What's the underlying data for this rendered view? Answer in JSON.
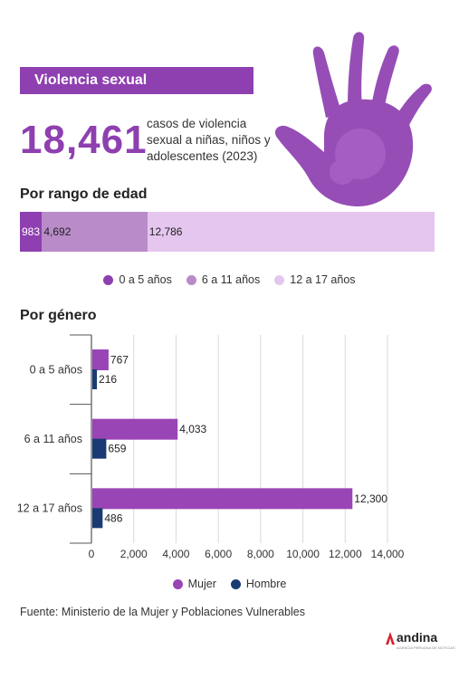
{
  "banner": {
    "title": "Violencia sexual"
  },
  "headline": {
    "number": "18,461",
    "description": "casos de violencia sexual a niñas, niños y adolescentes (2023)"
  },
  "age_section": {
    "title": "Por rango de edad"
  },
  "gender_section": {
    "title": "Por género"
  },
  "source": "Fuente: Ministerio de la Mujer y Poblaciones Vulnerables",
  "logo": {
    "name": "andina",
    "tagline": "AGENCIA PERUANA DE NOTICIAS"
  },
  "colors": {
    "accent": "#8e3fb0",
    "age_0_5": "#8e3fb0",
    "age_6_11": "#b98bc9",
    "age_12_17": "#e4c6ef",
    "mujer": "#9a45b5",
    "hombre": "#1a3a73"
  },
  "chart_data": [
    {
      "type": "bar",
      "orientation": "horizontal-stacked",
      "title": "Por rango de edad",
      "categories": [
        "0 a 5 años",
        "6 a 11 años",
        "12 a 17 años"
      ],
      "values": [
        983,
        4692,
        12786
      ],
      "value_labels": [
        "983",
        "4,692",
        "12,786"
      ],
      "legend": [
        "0 a 5 años",
        "6 a 11 años",
        "12 a 17 años"
      ],
      "legend_position": "bottom"
    },
    {
      "type": "bar",
      "orientation": "horizontal",
      "title": "Por género",
      "categories": [
        "0 a 5 años",
        "6 a 11 años",
        "12 a 17 años"
      ],
      "series": [
        {
          "name": "Mujer",
          "values": [
            767,
            4033,
            12300
          ],
          "labels": [
            "767",
            "4,033",
            "12,300"
          ]
        },
        {
          "name": "Hombre",
          "values": [
            216,
            659,
            486
          ],
          "labels": [
            "216",
            "659",
            "486"
          ]
        }
      ],
      "xlim": [
        0,
        14000
      ],
      "xticks": [
        0,
        2000,
        4000,
        6000,
        8000,
        10000,
        12000,
        14000
      ],
      "xtick_labels": [
        "0",
        "2,000",
        "4,000",
        "6,000",
        "8,000",
        "10,000",
        "12,000",
        "14,000"
      ],
      "grid": true,
      "legend_position": "bottom"
    }
  ]
}
